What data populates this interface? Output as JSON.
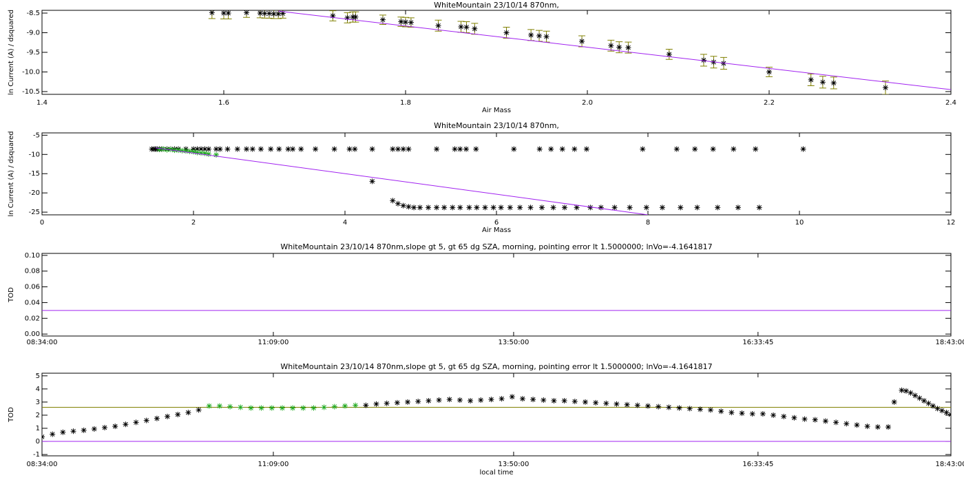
{
  "chart_data": [
    {
      "type": "scatter",
      "title": "WhiteMountain 23/10/14 870nm,",
      "x_label": "Air Mass",
      "y_label": "ln Current (A) / dsquared",
      "xlim": [
        1.4,
        2.4
      ],
      "xticks": [
        1.4,
        1.6,
        1.8,
        {
          "value": 2.0,
          "label": "2.0"
        },
        2.2,
        2.4
      ],
      "ylim": [
        -10.57,
        -8.43
      ],
      "yticks": [
        -8.5,
        {
          "value": -9.0,
          "label": "-9.0"
        },
        -9.5,
        {
          "value": -10.0,
          "label": "-10.0"
        },
        -10.5
      ],
      "series": [
        {
          "mode": "markers",
          "color": "#000000",
          "error_color": "#808000",
          "x": [
            1.587,
            1.6,
            1.605,
            1.625,
            1.64,
            1.645,
            1.65,
            1.655,
            1.66,
            1.665,
            1.72,
            1.736,
            1.742,
            1.745,
            1.775,
            1.795,
            1.8,
            1.806,
            1.836,
            1.861,
            1.867,
            1.876,
            1.911,
            1.938,
            1.947,
            1.955,
            1.994,
            2.026,
            2.035,
            2.045,
            2.09,
            2.128,
            2.139,
            2.15,
            2.2,
            2.246,
            2.259,
            2.271,
            2.328
          ],
          "values": [
            -8.49,
            -8.5,
            -8.5,
            -8.49,
            -8.5,
            -8.51,
            -8.51,
            -8.52,
            -8.52,
            -8.51,
            -8.57,
            -8.62,
            -8.6,
            -8.6,
            -8.67,
            -8.72,
            -8.73,
            -8.74,
            -8.82,
            -8.85,
            -8.86,
            -8.9,
            -9.0,
            -9.06,
            -9.08,
            -9.1,
            -9.22,
            -9.33,
            -9.37,
            -9.38,
            -9.55,
            -9.7,
            -9.75,
            -9.78,
            -10.0,
            -10.2,
            -10.26,
            -10.28,
            -10.4
          ],
          "errors": [
            0.15,
            0.15,
            0.15,
            0.12,
            0.12,
            0.12,
            0.12,
            0.12,
            0.12,
            0.12,
            0.13,
            0.13,
            0.13,
            0.13,
            0.12,
            0.12,
            0.12,
            0.12,
            0.14,
            0.14,
            0.14,
            0.14,
            0.14,
            0.14,
            0.14,
            0.14,
            0.14,
            0.14,
            0.14,
            0.14,
            0.13,
            0.15,
            0.15,
            0.15,
            0.12,
            0.15,
            0.15,
            0.15,
            0.17
          ]
        },
        {
          "mode": "lines",
          "color": "#a020f0",
          "x": [
            1.66,
            2.4
          ],
          "values": [
            -8.45,
            -10.45
          ]
        }
      ]
    },
    {
      "type": "scatter",
      "title": "WhiteMountain 23/10/14 870nm,",
      "x_label": "Air Mass",
      "y_label": "ln Current (A) / dsquared",
      "xlim": [
        0,
        12
      ],
      "xticks": [
        0,
        2,
        4,
        6,
        8,
        10,
        12
      ],
      "ylim": [
        -25.7,
        -4.4
      ],
      "yticks": [
        -5,
        -10,
        -15,
        -20,
        -25
      ],
      "series": [
        {
          "mode": "markers",
          "color": "#000000",
          "x": [
            1.45,
            1.48,
            1.5,
            1.52,
            1.55,
            1.58,
            1.6,
            1.65,
            1.7,
            1.75,
            1.8,
            1.9,
            2.0,
            2.05,
            2.1,
            2.15,
            2.2,
            2.3,
            2.35,
            2.45,
            2.58,
            2.7,
            2.78,
            2.89,
            3.02,
            3.13,
            3.25,
            3.31,
            3.42,
            3.61,
            3.86,
            4.06,
            4.13,
            4.36,
            4.63,
            4.7,
            4.77,
            4.84,
            5.21,
            5.45,
            5.52,
            5.6,
            5.73,
            6.23,
            6.57,
            6.72,
            6.87,
            7.03,
            7.19,
            7.93,
            8.38,
            8.62,
            8.86,
            9.13,
            9.42,
            10.05,
            4.36,
            4.63,
            4.7,
            4.77,
            4.84,
            4.91,
            4.99,
            5.1,
            5.21,
            5.31,
            5.42,
            5.52,
            5.64,
            5.74,
            5.85,
            5.96,
            6.06,
            6.18,
            6.31,
            6.45,
            6.6,
            6.75,
            6.9,
            7.06,
            7.24,
            7.38,
            7.56,
            7.76,
            7.98,
            8.19,
            8.43,
            8.65,
            8.92,
            9.19,
            9.47
          ],
          "values": [
            -8.6,
            -8.6,
            -8.6,
            -8.6,
            -8.6,
            -8.6,
            -8.6,
            -8.6,
            -8.6,
            -8.6,
            -8.6,
            -8.6,
            -8.6,
            -8.6,
            -8.6,
            -8.6,
            -8.6,
            -8.6,
            -8.6,
            -8.6,
            -8.6,
            -8.6,
            -8.6,
            -8.6,
            -8.6,
            -8.6,
            -8.6,
            -8.6,
            -8.6,
            -8.6,
            -8.6,
            -8.6,
            -8.6,
            -8.6,
            -8.6,
            -8.6,
            -8.6,
            -8.6,
            -8.6,
            -8.6,
            -8.6,
            -8.6,
            -8.6,
            -8.6,
            -8.6,
            -8.6,
            -8.6,
            -8.6,
            -8.6,
            -8.6,
            -8.6,
            -8.6,
            -8.6,
            -8.6,
            -8.6,
            -8.6,
            -17,
            -22,
            -22.8,
            -23.3,
            -23.6,
            -23.8,
            -23.8,
            -23.8,
            -23.8,
            -23.8,
            -23.8,
            -23.8,
            -23.8,
            -23.8,
            -23.8,
            -23.8,
            -23.8,
            -23.8,
            -23.8,
            -23.8,
            -23.8,
            -23.8,
            -23.8,
            -23.8,
            -23.8,
            -23.8,
            -23.8,
            -23.8,
            -23.8,
            -23.8,
            -23.8,
            -23.8,
            -23.8,
            -23.8,
            -23.8
          ]
        },
        {
          "mode": "markers",
          "color": "#22aa22",
          "x": [
            1.55,
            1.6,
            1.65,
            1.7,
            1.75,
            1.8,
            1.85,
            1.9,
            1.95,
            2.0,
            2.05,
            2.1,
            2.15,
            2.2,
            2.3
          ],
          "values": [
            -8.7,
            -8.6,
            -8.8,
            -8.7,
            -8.9,
            -8.9,
            -9.0,
            -9.1,
            -9.2,
            -9.3,
            -9.5,
            -9.6,
            -9.7,
            -9.9,
            -10.1
          ]
        },
        {
          "mode": "lines",
          "color": "#a020f0",
          "x": [
            1.5,
            8.0
          ],
          "values": [
            -8.3,
            -25.7
          ]
        }
      ]
    },
    {
      "type": "scatter",
      "title": "WhiteMountain 23/10/14 870nm,slope gt 5, gt 65 dg SZA, morning, pointing error lt 1.5000000; lnVo=-4.1641817",
      "y_label": "TOD",
      "xlim": [
        "08:34:00",
        "18:43:00"
      ],
      "xticks": [
        "08:34:00",
        "11:09:00",
        "13:50:00",
        "16:33:45",
        "18:43:00"
      ],
      "ylim": [
        -0.0025,
        0.1025
      ],
      "yticks": [
        {
          "value": 0,
          "label": "0.00"
        },
        {
          "value": 0.02,
          "label": "0.02"
        },
        {
          "value": 0.04,
          "label": "0.04"
        },
        {
          "value": 0.06,
          "label": "0.06"
        },
        {
          "value": 0.08,
          "label": "0.08"
        },
        {
          "value": 0.1,
          "label": "0.10"
        }
      ],
      "series": [
        {
          "mode": "lines",
          "color": "#a020f0",
          "x": [
            "08:34:00",
            "18:43:00"
          ],
          "values": [
            0.03,
            0.03
          ]
        }
      ]
    },
    {
      "type": "scatter",
      "title": "WhiteMountain 23/10/14 870nm,slope gt 5, gt 65 dg SZA, morning, pointing error lt 1.5000000; lnVo=-4.1641817",
      "x_label": "local time",
      "y_label": "TOD",
      "xlim": [
        "08:34:00",
        "18:43:00"
      ],
      "xticks": [
        "08:34:00",
        "11:09:00",
        "13:50:00",
        "16:33:45",
        "18:43:00"
      ],
      "ylim": [
        -1.1,
        5.2
      ],
      "yticks": [
        -1,
        0,
        1,
        2,
        3,
        4,
        5
      ],
      "series": [
        {
          "mode": "lines",
          "color": "#808000",
          "x": [
            "08:34:00",
            "18:43:00"
          ],
          "values": [
            2.6,
            2.6
          ]
        },
        {
          "mode": "lines",
          "color": "#a020f0",
          "x": [
            "08:34:00",
            "18:43:00"
          ],
          "values": [
            0,
            0
          ]
        },
        {
          "mode": "markers",
          "color": "#000000",
          "x": [
            "08:34:00",
            "08:41:00",
            "08:48:00",
            "08:55:00",
            "09:02:00",
            "09:09:00",
            "09:16:00",
            "09:23:00",
            "09:30:00",
            "09:37:00",
            "09:44:00",
            "09:51:00",
            "09:58:00",
            "10:05:00",
            "10:12:00",
            "10:19:00",
            "12:11:00",
            "12:18:00",
            "12:25:00",
            "12:32:00",
            "12:39:00",
            "12:46:00",
            "12:53:00",
            "13:00:00",
            "13:07:00",
            "13:14:00",
            "13:21:00",
            "13:28:00",
            "13:35:00",
            "13:42:00",
            "13:49:00",
            "13:56:00",
            "14:03:00",
            "14:10:00",
            "14:17:00",
            "14:24:00",
            "14:31:00",
            "14:38:00",
            "14:45:00",
            "14:52:00",
            "14:59:00",
            "15:06:00",
            "15:13:00",
            "15:20:00",
            "15:27:00",
            "15:34:00",
            "15:41:00",
            "15:48:00",
            "15:55:00",
            "16:02:00",
            "16:09:00",
            "16:16:00",
            "16:23:00",
            "16:30:00",
            "16:37:00",
            "16:44:00",
            "16:51:00",
            "16:58:00",
            "17:05:00",
            "17:12:00",
            "17:19:00",
            "17:26:00",
            "17:33:00",
            "17:40:00",
            "17:47:00",
            "17:54:00",
            "18:01:00",
            "18:05:00",
            "18:10:00",
            "18:13:00",
            "18:16:00",
            "18:19:00",
            "18:22:00",
            "18:25:00",
            "18:28:00",
            "18:31:00",
            "18:34:00",
            "18:37:00",
            "18:40:00",
            "18:43:00"
          ],
          "values": [
            0.35,
            0.55,
            0.7,
            0.78,
            0.85,
            0.95,
            1.05,
            1.15,
            1.3,
            1.45,
            1.6,
            1.75,
            1.9,
            2.05,
            2.2,
            2.4,
            2.75,
            2.85,
            2.9,
            2.95,
            3.0,
            3.05,
            3.1,
            3.15,
            3.2,
            3.15,
            3.1,
            3.15,
            3.2,
            3.25,
            3.4,
            3.25,
            3.2,
            3.15,
            3.1,
            3.1,
            3.05,
            3.0,
            2.95,
            2.9,
            2.85,
            2.8,
            2.75,
            2.7,
            2.65,
            2.6,
            2.55,
            2.5,
            2.45,
            2.4,
            2.3,
            2.2,
            2.15,
            2.1,
            2.1,
            2.0,
            1.9,
            1.8,
            1.7,
            1.65,
            1.55,
            1.45,
            1.35,
            1.25,
            1.15,
            1.1,
            1.1,
            3.0,
            3.9,
            3.85,
            3.7,
            3.5,
            3.3,
            3.1,
            2.9,
            2.7,
            2.5,
            2.35,
            2.2,
            2.05
          ]
        },
        {
          "mode": "markers",
          "color": "#22aa22",
          "x": [
            "10:26:00",
            "10:33:00",
            "10:40:00",
            "10:47:00",
            "10:54:00",
            "11:01:00",
            "11:08:00",
            "11:15:00",
            "11:22:00",
            "11:29:00",
            "11:36:00",
            "11:43:00",
            "11:50:00",
            "11:57:00",
            "12:04:00"
          ],
          "values": [
            2.7,
            2.7,
            2.65,
            2.6,
            2.55,
            2.55,
            2.55,
            2.55,
            2.55,
            2.55,
            2.55,
            2.6,
            2.65,
            2.7,
            2.75
          ]
        }
      ]
    }
  ]
}
